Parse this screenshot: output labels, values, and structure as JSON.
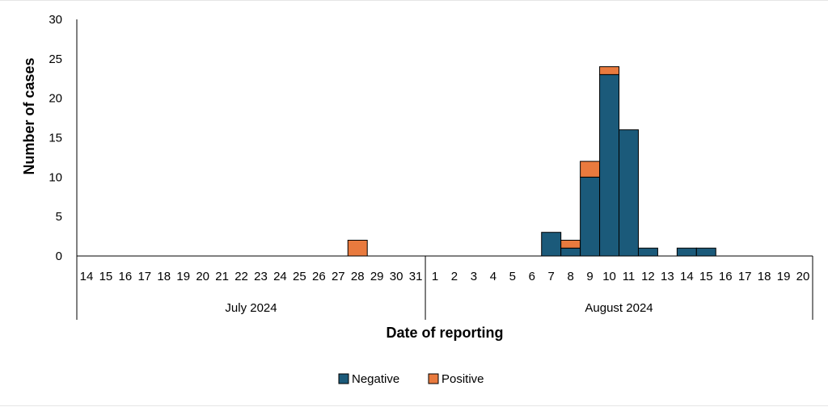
{
  "chart_data": {
    "type": "bar",
    "stacked": true,
    "xlabel": "Date of reporting",
    "ylabel": "Number of cases",
    "ylim": [
      0,
      30
    ],
    "yticks": [
      0,
      5,
      10,
      15,
      20,
      25,
      30
    ],
    "grid": false,
    "legend_position": "bottom",
    "categories": [
      "14",
      "15",
      "16",
      "17",
      "18",
      "19",
      "20",
      "21",
      "22",
      "23",
      "24",
      "25",
      "26",
      "27",
      "28",
      "29",
      "30",
      "31",
      "1",
      "2",
      "3",
      "4",
      "5",
      "6",
      "7",
      "8",
      "9",
      "10",
      "11",
      "12",
      "13",
      "14",
      "15",
      "16",
      "17",
      "18",
      "19",
      "20"
    ],
    "groups": [
      {
        "label": "July 2024",
        "start": 0,
        "count": 18
      },
      {
        "label": "August 2024",
        "start": 18,
        "count": 20
      }
    ],
    "series": [
      {
        "name": "Negative",
        "color": "#1b5a7a",
        "values": [
          0,
          0,
          0,
          0,
          0,
          0,
          0,
          0,
          0,
          0,
          0,
          0,
          0,
          0,
          0,
          0,
          0,
          0,
          0,
          0,
          0,
          0,
          0,
          0,
          3,
          1,
          10,
          23,
          16,
          1,
          0,
          1,
          1,
          0,
          0,
          0,
          0,
          0
        ]
      },
      {
        "name": "Positive",
        "color": "#e97a3e",
        "values": [
          0,
          0,
          0,
          0,
          0,
          0,
          0,
          0,
          0,
          0,
          0,
          0,
          0,
          0,
          2,
          0,
          0,
          0,
          0,
          0,
          0,
          0,
          0,
          0,
          0,
          1,
          2,
          1,
          0,
          0,
          0,
          0,
          0,
          0,
          0,
          0,
          0,
          0
        ]
      }
    ]
  }
}
